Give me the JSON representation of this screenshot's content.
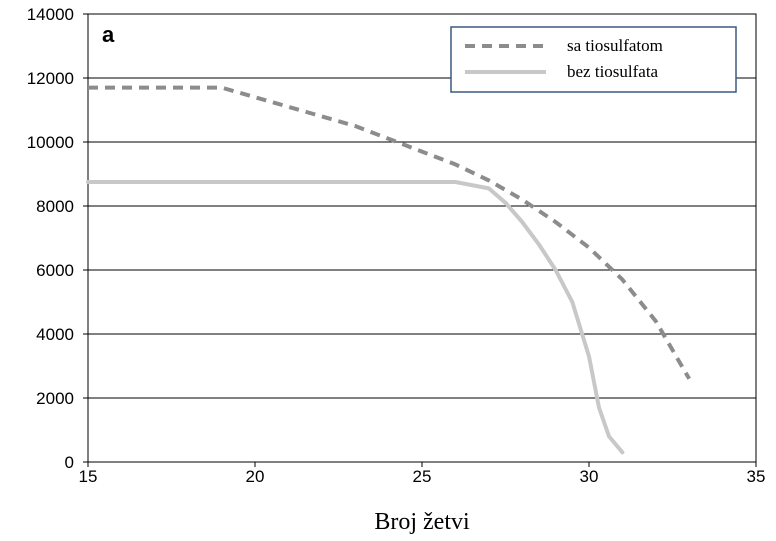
{
  "chart_data": {
    "type": "line",
    "panel_label": "a",
    "xlabel": "Broj žetvi",
    "ylabel": "",
    "xlim": [
      15,
      35
    ],
    "ylim": [
      0,
      14000
    ],
    "xticks": [
      15,
      20,
      25,
      30,
      35
    ],
    "yticks": [
      0,
      2000,
      4000,
      6000,
      8000,
      10000,
      12000,
      14000
    ],
    "grid": "horizontal",
    "legend_position": "top-right",
    "series": [
      {
        "name": "sa tiosulfatom",
        "style": "dashed",
        "color": "#8c8c8c",
        "x": [
          15,
          16,
          17,
          18,
          19,
          20,
          21,
          22,
          23,
          24,
          25,
          26,
          27,
          28,
          29,
          30,
          31,
          32,
          33
        ],
        "y": [
          11700,
          11700,
          11700,
          11700,
          11700,
          11400,
          11100,
          10800,
          10500,
          10100,
          9700,
          9300,
          8800,
          8200,
          7500,
          6700,
          5700,
          4400,
          2600
        ]
      },
      {
        "name": "bez tiosulfata",
        "style": "solid",
        "color": "#c8c8c8",
        "x": [
          15,
          17,
          19,
          21,
          23,
          25,
          26,
          27,
          27.5,
          28,
          28.5,
          29,
          29.5,
          30,
          30.3,
          30.6,
          31
        ],
        "y": [
          8750,
          8750,
          8750,
          8750,
          8750,
          8750,
          8750,
          8550,
          8100,
          7500,
          6800,
          6000,
          5000,
          3300,
          1700,
          800,
          300
        ]
      }
    ]
  }
}
